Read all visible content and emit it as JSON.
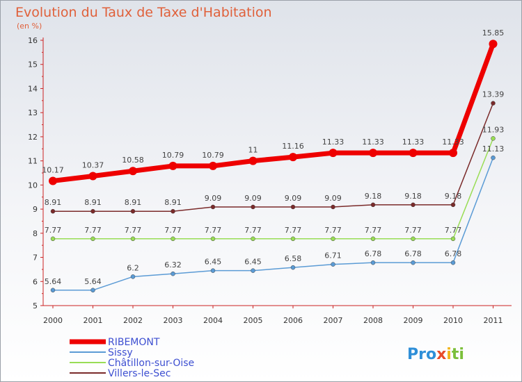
{
  "title": "Evolution du Taux de Taxe d'Habitation",
  "subtitle": "(en %)",
  "brand": "Proxiti",
  "colors": {
    "title": "#e0603a",
    "axis": "#cc2222",
    "legend_text": "#3d4fd1"
  },
  "chart_data": {
    "type": "line",
    "title": "Evolution du Taux de Taxe d'Habitation",
    "subtitle": "(en %)",
    "xlabel": "",
    "ylabel": "",
    "x": [
      "2000",
      "2001",
      "2002",
      "2003",
      "2004",
      "2005",
      "2006",
      "2007",
      "2008",
      "2009",
      "2010",
      "2011"
    ],
    "ylim": [
      5,
      16
    ],
    "yticks": [
      5,
      6,
      7,
      8,
      9,
      10,
      11,
      12,
      13,
      14,
      15,
      16
    ],
    "grid": false,
    "legend_position": "bottom-left",
    "series": [
      {
        "name": "RIBEMONT",
        "color": "#ee0000",
        "values": [
          10.17,
          10.37,
          10.58,
          10.79,
          10.79,
          11,
          11.16,
          11.33,
          11.33,
          11.33,
          11.33,
          15.85
        ],
        "labels": [
          "10.17",
          "10.37",
          "10.58",
          "10.79",
          "10.79",
          "11",
          "11.16",
          "11.33",
          "11.33",
          "11.33",
          "11.33",
          "15.85"
        ]
      },
      {
        "name": "Sissy",
        "color": "#5b9bd5",
        "values": [
          5.64,
          5.64,
          6.2,
          6.32,
          6.45,
          6.45,
          6.58,
          6.71,
          6.78,
          6.78,
          6.78,
          11.13
        ],
        "labels": [
          "5.64",
          "5.64",
          "6.2",
          "6.32",
          "6.45",
          "6.45",
          "6.58",
          "6.71",
          "6.78",
          "6.78",
          "6.78",
          "11.13"
        ]
      },
      {
        "name": "Châtillon-sur-Oise",
        "color": "#99dd55",
        "values": [
          7.77,
          7.77,
          7.77,
          7.77,
          7.77,
          7.77,
          7.77,
          7.77,
          7.77,
          7.77,
          7.77,
          11.93
        ],
        "labels": [
          "7.77",
          "7.77",
          "7.77",
          "7.77",
          "7.77",
          "7.77",
          "7.77",
          "7.77",
          "7.77",
          "7.77",
          "7.77",
          "11.93"
        ]
      },
      {
        "name": "Villers-le-Sec",
        "color": "#7a2a2a",
        "values": [
          8.91,
          8.91,
          8.91,
          8.91,
          9.09,
          9.09,
          9.09,
          9.09,
          9.18,
          9.18,
          9.18,
          13.39
        ],
        "labels": [
          "8.91",
          "8.91",
          "8.91",
          "8.91",
          "9.09",
          "9.09",
          "9.09",
          "9.09",
          "9.18",
          "9.18",
          "9.18",
          "13.39"
        ]
      }
    ]
  }
}
